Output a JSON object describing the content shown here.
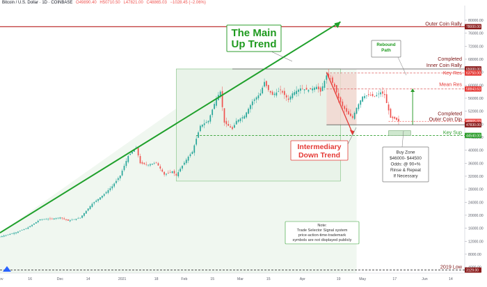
{
  "header": {
    "symbol": "Bitcoin / U.S. Dollar · 1D · COINBASE",
    "open": "O49890.40",
    "high": "H50710.50",
    "low": "L47821.00",
    "close": "C48865.03",
    "change": "−1028.45 (−2.06%)"
  },
  "colors": {
    "up": "#26a69a",
    "down": "#ef5350",
    "trend_line": "#1fa02b",
    "res_line": "#b71c1c",
    "sup_line": "#2e9e2e",
    "annotation_green": "#1f9a1f",
    "annotation_red": "#e53935",
    "price_tag_dark": "#8b1c1c"
  },
  "chart_data": {
    "type": "candlestick",
    "title": "Bitcoin / U.S. Dollar · 1D · COINBASE",
    "y_axis_ticks": [
      4000,
      8000,
      12000,
      16000,
      20000,
      24000,
      28000,
      32000,
      36000,
      40000,
      44000,
      48000,
      52000,
      56000,
      60000,
      64000,
      68000,
      72000,
      76000,
      80000
    ],
    "y_axis_tick_labels": [
      "4000.00",
      "8000.00",
      "12000.00",
      "16000.00",
      "20000.00",
      "24000.00",
      "28000.00",
      "32000.00",
      "36000.00",
      "40000.00",
      "44000.00",
      "48000.00",
      "52000.00",
      "56000.00",
      "60000.00",
      "64000.00",
      "68000.00",
      "72000.00",
      "76000.00",
      "80000.00"
    ],
    "ylim": [
      2200,
      84500
    ],
    "x_axis_labels": [
      {
        "label": "Nov",
        "day": 0
      },
      {
        "label": "16",
        "day": 15
      },
      {
        "label": "Dec",
        "day": 30
      },
      {
        "label": "14",
        "day": 44
      },
      {
        "label": "2021",
        "day": 61
      },
      {
        "label": "18",
        "day": 78
      },
      {
        "label": "Feb",
        "day": 92
      },
      {
        "label": "15",
        "day": 106
      },
      {
        "label": "Mar",
        "day": 120
      },
      {
        "label": "15",
        "day": 134
      },
      {
        "label": "Apr",
        "day": 151
      },
      {
        "label": "19",
        "day": 169
      },
      {
        "label": "May",
        "day": 181
      },
      {
        "label": "17",
        "day": 197
      },
      {
        "label": "Jun",
        "day": 212
      },
      {
        "label": "14",
        "day": 225
      }
    ],
    "x_range_days": [
      0,
      232
    ],
    "price_levels": [
      {
        "name": "Outer Coin Rally",
        "value": 78000,
        "tag": "78000.00",
        "style": "res"
      },
      {
        "name": "Completed Inner Coin Rally",
        "value": 65000,
        "tag": "65000.00",
        "style": "res-dark"
      },
      {
        "name": "Key Res",
        "value": 63750,
        "tag": "63750.00",
        "style": "res-dashed"
      },
      {
        "name": "Mean Res",
        "value": 58843.63,
        "tag": "58843.63",
        "style": "res-dashed"
      },
      {
        "name": "Completed Outer Coin Dip",
        "value": 48865.03,
        "tag": "48865.03",
        "style": "last"
      },
      {
        "name": "Completed Outer Coin Dip Low",
        "value": 47830,
        "tag": "47830.00",
        "style": "res-dark"
      },
      {
        "name": "Key Sup",
        "value": 44540,
        "tag": "44540.00",
        "style": "sup"
      },
      {
        "name": "2019 Low",
        "value": 3129,
        "tag": "3129.00",
        "style": "res-dark"
      }
    ],
    "annotations": [
      {
        "id": "main_trend",
        "text": "The Main\nUp Trend"
      },
      {
        "id": "down_trend",
        "text": "Intermediary\nDown Trend"
      },
      {
        "id": "rebound",
        "text": "Rebound\nPath"
      },
      {
        "id": "buy_zone",
        "text": "Buy Zone\n$46000- $44500\nOdds: @ 90+%\nRinse & Repeat\nIf Necessary"
      },
      {
        "id": "note",
        "text": "Note:\nTrade Selector Signal system\nprice-action-time-trademark\nsymbols are not displayed publicly"
      }
    ],
    "trend_line": {
      "start": {
        "day": 0,
        "price": 14600
      },
      "end": {
        "day": 170,
        "price": 79500
      }
    },
    "candles_keyframes": [
      [
        0,
        13400
      ],
      [
        8,
        14700
      ],
      [
        14,
        16200
      ],
      [
        20,
        18700
      ],
      [
        26,
        18900
      ],
      [
        30,
        19300
      ],
      [
        34,
        18300
      ],
      [
        40,
        19200
      ],
      [
        46,
        23500
      ],
      [
        52,
        26500
      ],
      [
        56,
        28900
      ],
      [
        60,
        32200
      ],
      [
        64,
        38200
      ],
      [
        68,
        40800
      ],
      [
        70,
        36000
      ],
      [
        74,
        35500
      ],
      [
        78,
        36200
      ],
      [
        82,
        32500
      ],
      [
        86,
        33500
      ],
      [
        88,
        32200
      ],
      [
        90,
        34300
      ],
      [
        94,
        38000
      ],
      [
        96,
        39500
      ],
      [
        100,
        47500
      ],
      [
        104,
        49000
      ],
      [
        108,
        56000
      ],
      [
        110,
        58000
      ],
      [
        112,
        48500
      ],
      [
        116,
        46500
      ],
      [
        118,
        49000
      ],
      [
        122,
        50500
      ],
      [
        126,
        55000
      ],
      [
        130,
        57500
      ],
      [
        132,
        61000
      ],
      [
        134,
        58500
      ],
      [
        136,
        57000
      ],
      [
        140,
        58500
      ],
      [
        144,
        55500
      ],
      [
        146,
        57500
      ],
      [
        150,
        59000
      ],
      [
        154,
        58500
      ],
      [
        158,
        59500
      ],
      [
        160,
        58000
      ],
      [
        163,
        63000
      ],
      [
        165,
        62000
      ],
      [
        167,
        59500
      ],
      [
        169,
        56000
      ],
      [
        171,
        53500
      ],
      [
        174,
        51000
      ],
      [
        176,
        50000
      ],
      [
        178,
        53000
      ],
      [
        181,
        56500
      ],
      [
        184,
        57000
      ],
      [
        187,
        56500
      ],
      [
        190,
        57800
      ],
      [
        192,
        57000
      ],
      [
        193,
        54500
      ],
      [
        195,
        50000
      ],
      [
        197,
        49700
      ],
      [
        199,
        48900
      ]
    ]
  }
}
